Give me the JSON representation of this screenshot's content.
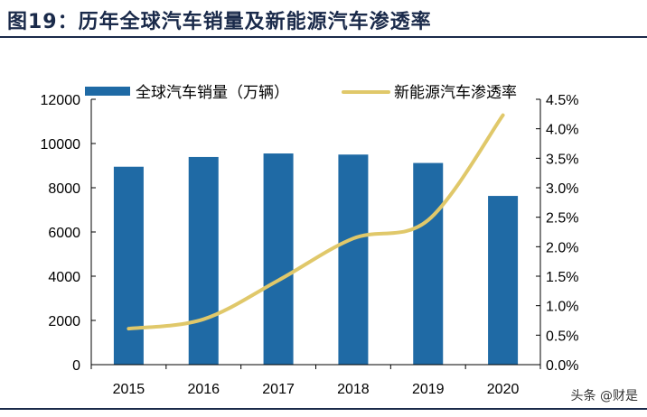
{
  "title": "图19：历年全球汽车销量及新能源汽车渗透率",
  "watermark": "头条 @财是",
  "chart_data": {
    "type": "bar+line",
    "categories": [
      "2015",
      "2016",
      "2017",
      "2018",
      "2019",
      "2020"
    ],
    "series": [
      {
        "name": "全球汽车销量（万辆）",
        "type": "bar",
        "axis": "left",
        "color": "#1f6aa5",
        "values": [
          8950,
          9390,
          9550,
          9500,
          9120,
          7630
        ]
      },
      {
        "name": "新能源汽车渗透率",
        "type": "line",
        "axis": "right",
        "color": "#e0c86a",
        "values": [
          0.61,
          0.77,
          1.43,
          2.14,
          2.45,
          4.23
        ]
      }
    ],
    "left_axis": {
      "range": [
        0,
        12000
      ],
      "ticks": [
        "0",
        "2000",
        "4000",
        "6000",
        "8000",
        "10000",
        "12000"
      ]
    },
    "right_axis": {
      "range": [
        0,
        4.5
      ],
      "unit": "%",
      "ticks": [
        "0.0%",
        "0.5%",
        "1.0%",
        "1.5%",
        "2.0%",
        "2.5%",
        "3.0%",
        "3.5%",
        "4.0%",
        "4.5%"
      ]
    },
    "grid": false,
    "legend_placement": "top"
  }
}
